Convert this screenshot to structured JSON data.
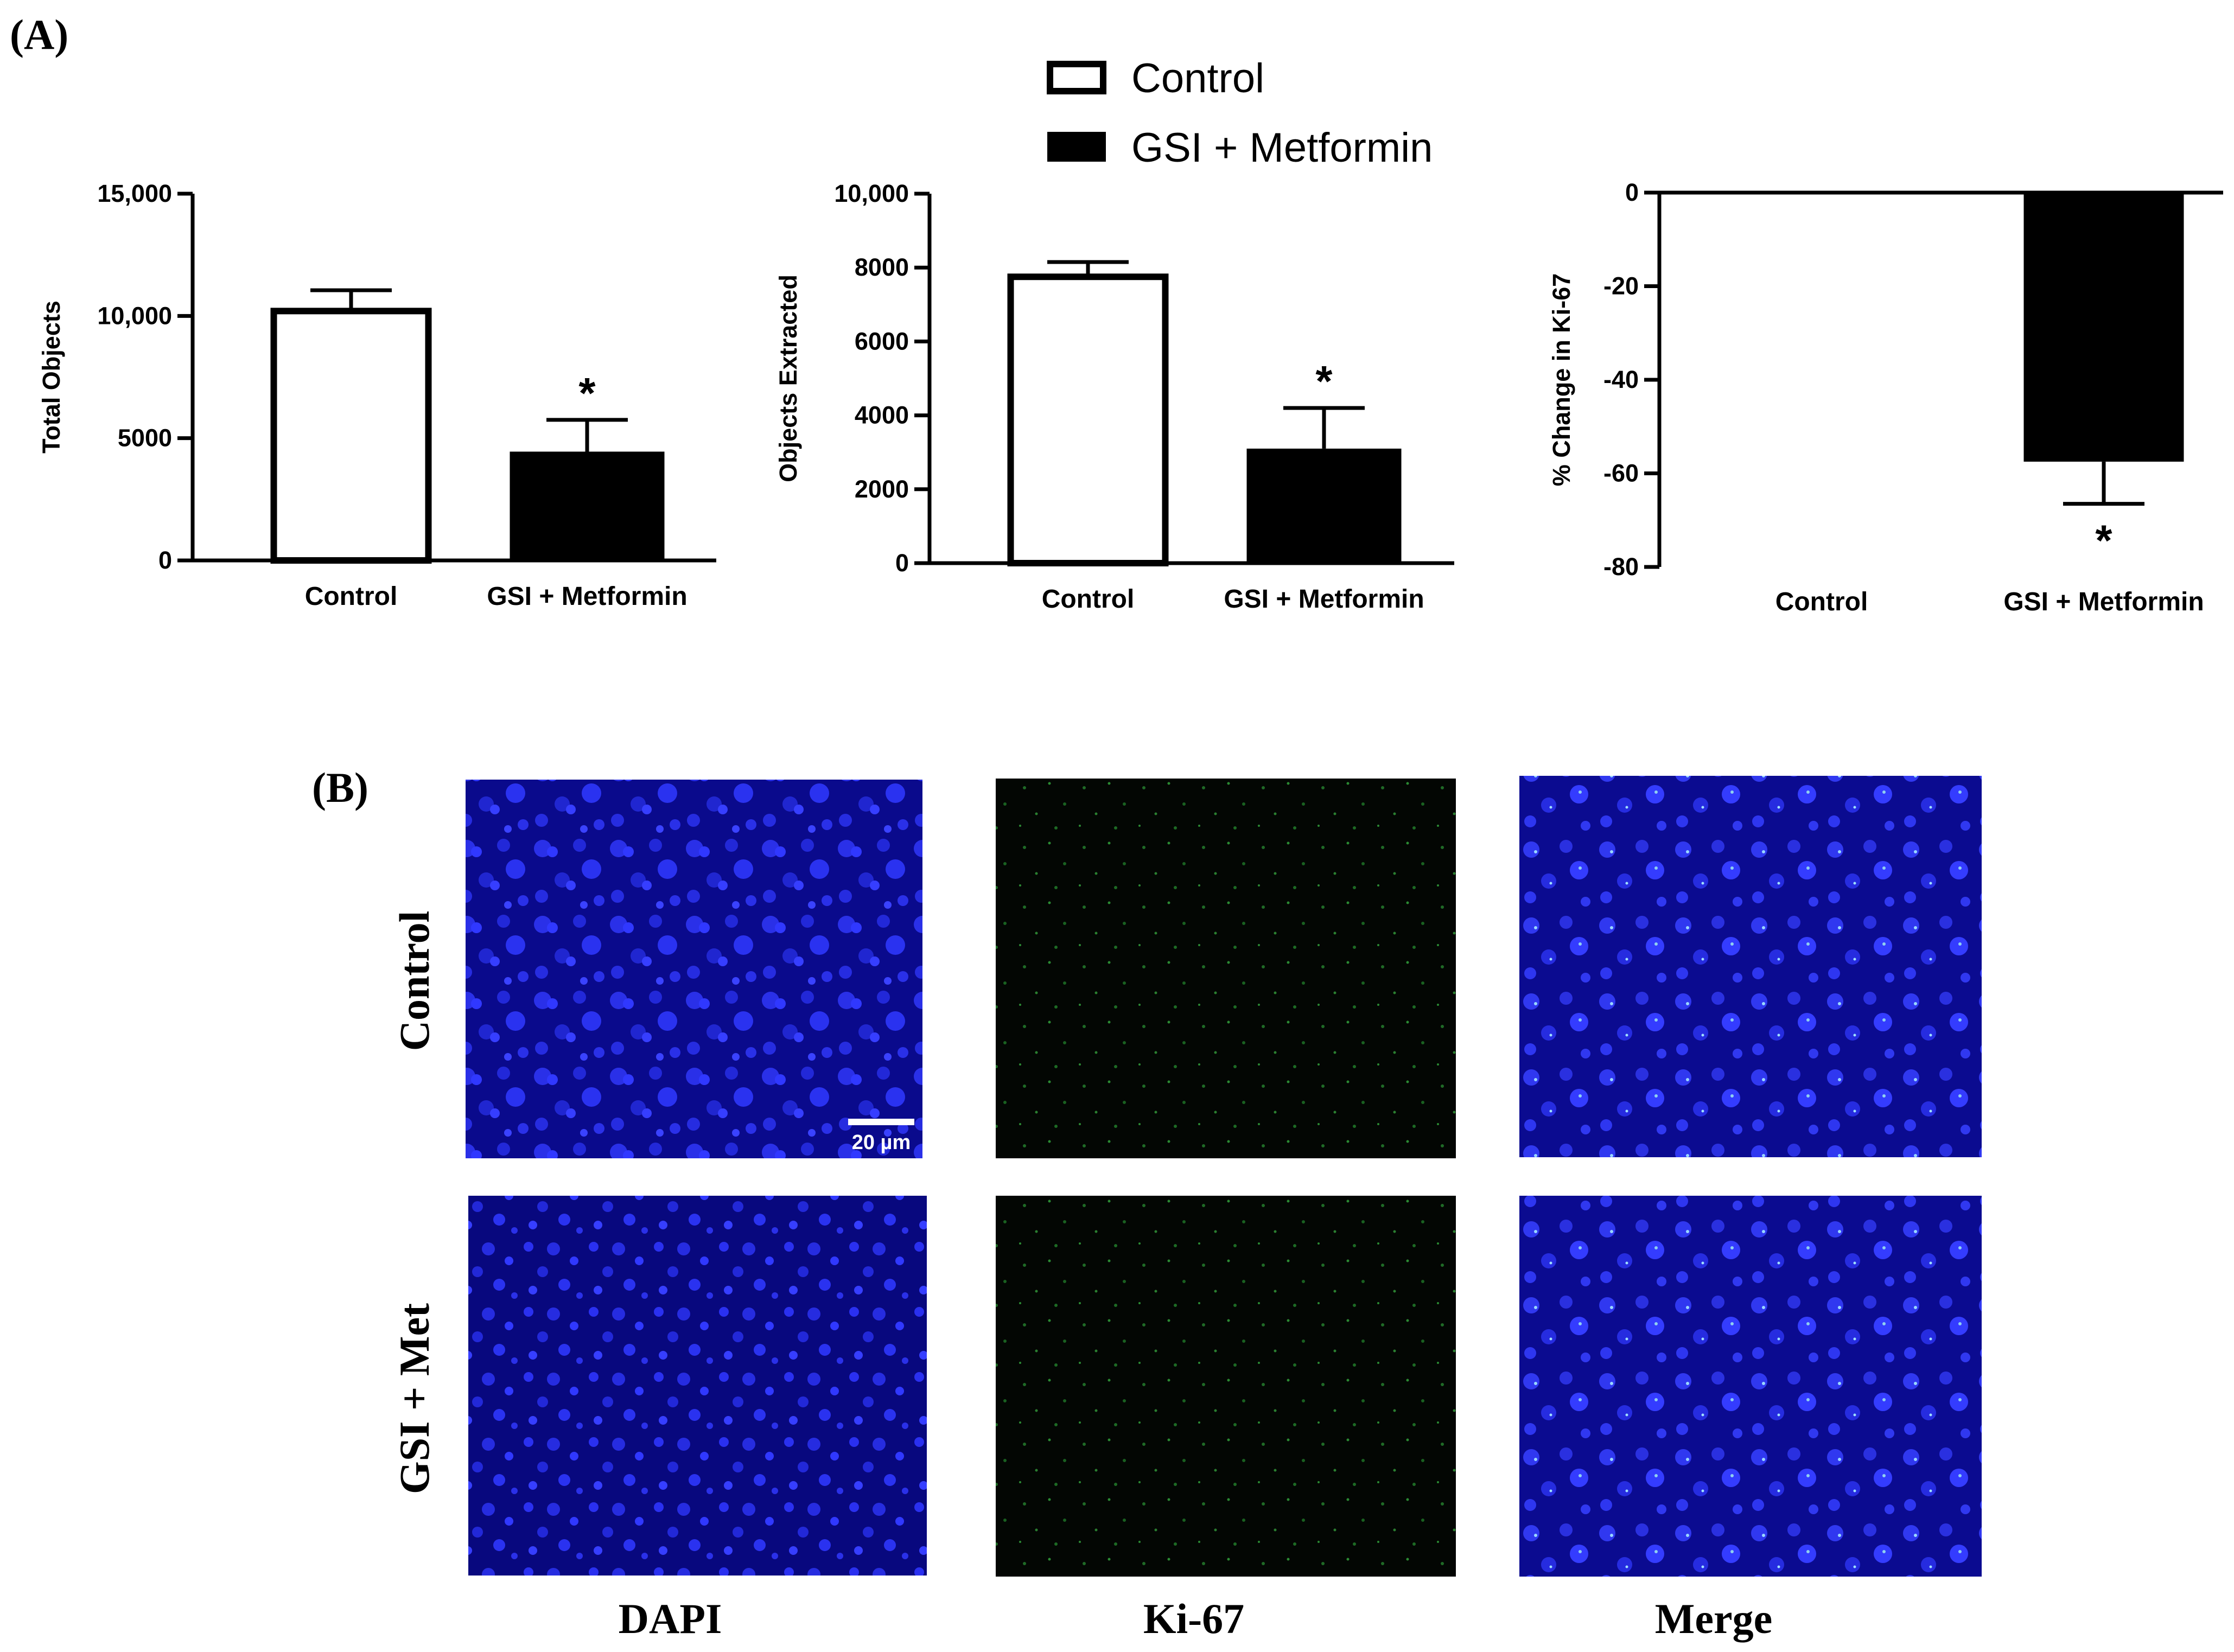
{
  "panel_labels": {
    "a": "(A)",
    "b": "(B)"
  },
  "legend": {
    "control": "Control",
    "treatment": "GSI + Metformin",
    "colors": {
      "control": "#ffffff",
      "treatment": "#000000"
    }
  },
  "chart_data": [
    {
      "type": "bar",
      "categories": [
        "Control",
        "GSI + Metformin"
      ],
      "values": [
        10200,
        4450
      ],
      "errors": [
        850,
        1300
      ],
      "annotations": [
        "",
        "*"
      ],
      "ylabel": "Total Objects",
      "yticks": [
        "0",
        "5000",
        "10,000",
        "15,000"
      ],
      "ytick_values": [
        0,
        5000,
        10000,
        15000
      ],
      "ylim": [
        0,
        15000
      ]
    },
    {
      "type": "bar",
      "categories": [
        "Control",
        "GSI + Metformin"
      ],
      "values": [
        7750,
        3100
      ],
      "errors": [
        400,
        1100
      ],
      "annotations": [
        "",
        "*"
      ],
      "ylabel": "Objects Extracted",
      "yticks": [
        "0",
        "2000",
        "4000",
        "6000",
        "8000",
        "10,000"
      ],
      "ytick_values": [
        0,
        2000,
        4000,
        6000,
        8000,
        10000
      ],
      "ylim": [
        0,
        10000
      ]
    },
    {
      "type": "bar",
      "categories": [
        "Control",
        "GSI + Metformin"
      ],
      "values": [
        0,
        -57.5
      ],
      "errors": [
        0,
        9
      ],
      "annotations": [
        "",
        "*"
      ],
      "ylabel": "% Change in Ki-67",
      "yticks": [
        "0",
        "-20",
        "-40",
        "-60",
        "-80"
      ],
      "ytick_values": [
        0,
        -20,
        -40,
        -60,
        -80
      ],
      "ylim": [
        -80,
        0
      ]
    }
  ],
  "micrographs": {
    "row_labels": [
      "Control",
      "GSI + Met"
    ],
    "column_labels": [
      "DAPI",
      "Ki-67",
      "Merge"
    ],
    "scale_bar": "20 µm"
  }
}
